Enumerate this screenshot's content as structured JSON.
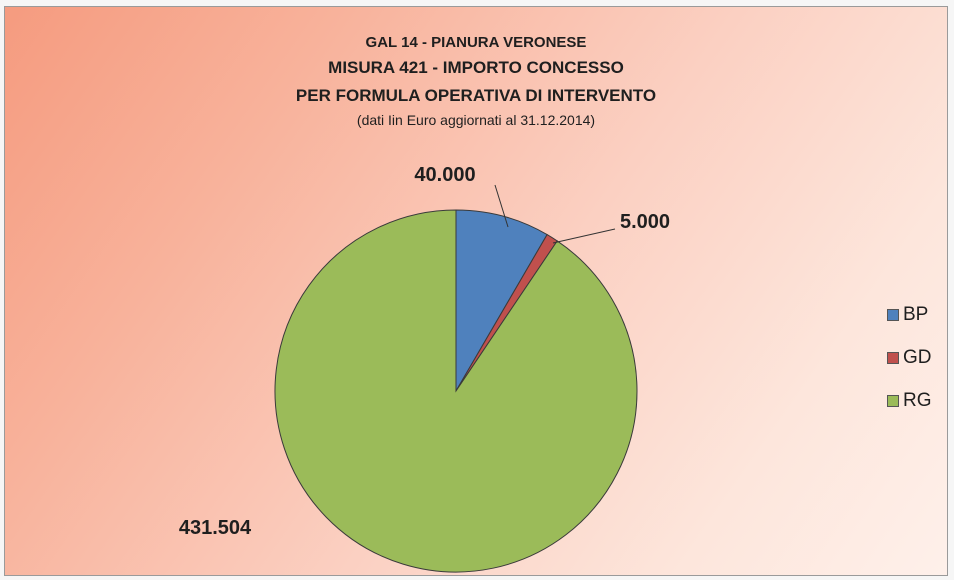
{
  "chart_data": {
    "type": "pie",
    "title_lines": [
      "GAL 14 - PIANURA VERONESE",
      "MISURA 421  -  IMPORTO CONCESSO",
      "PER FORMULA OPERATIVA DI INTERVENTO",
      "(dati Iin Euro aggiornati al 31.12.2014)"
    ],
    "slices": [
      {
        "label": "BP",
        "value": 40000,
        "data_label": "40.000",
        "color": "#4f81bd"
      },
      {
        "label": "GD",
        "value": 5000,
        "data_label": "5.000",
        "color": "#c0504d"
      },
      {
        "label": "RG",
        "value": 431504,
        "data_label": "431.504",
        "color": "#9bbb59"
      }
    ],
    "legend_position": "right",
    "start_angle": "12 o'clock, clockwise"
  }
}
